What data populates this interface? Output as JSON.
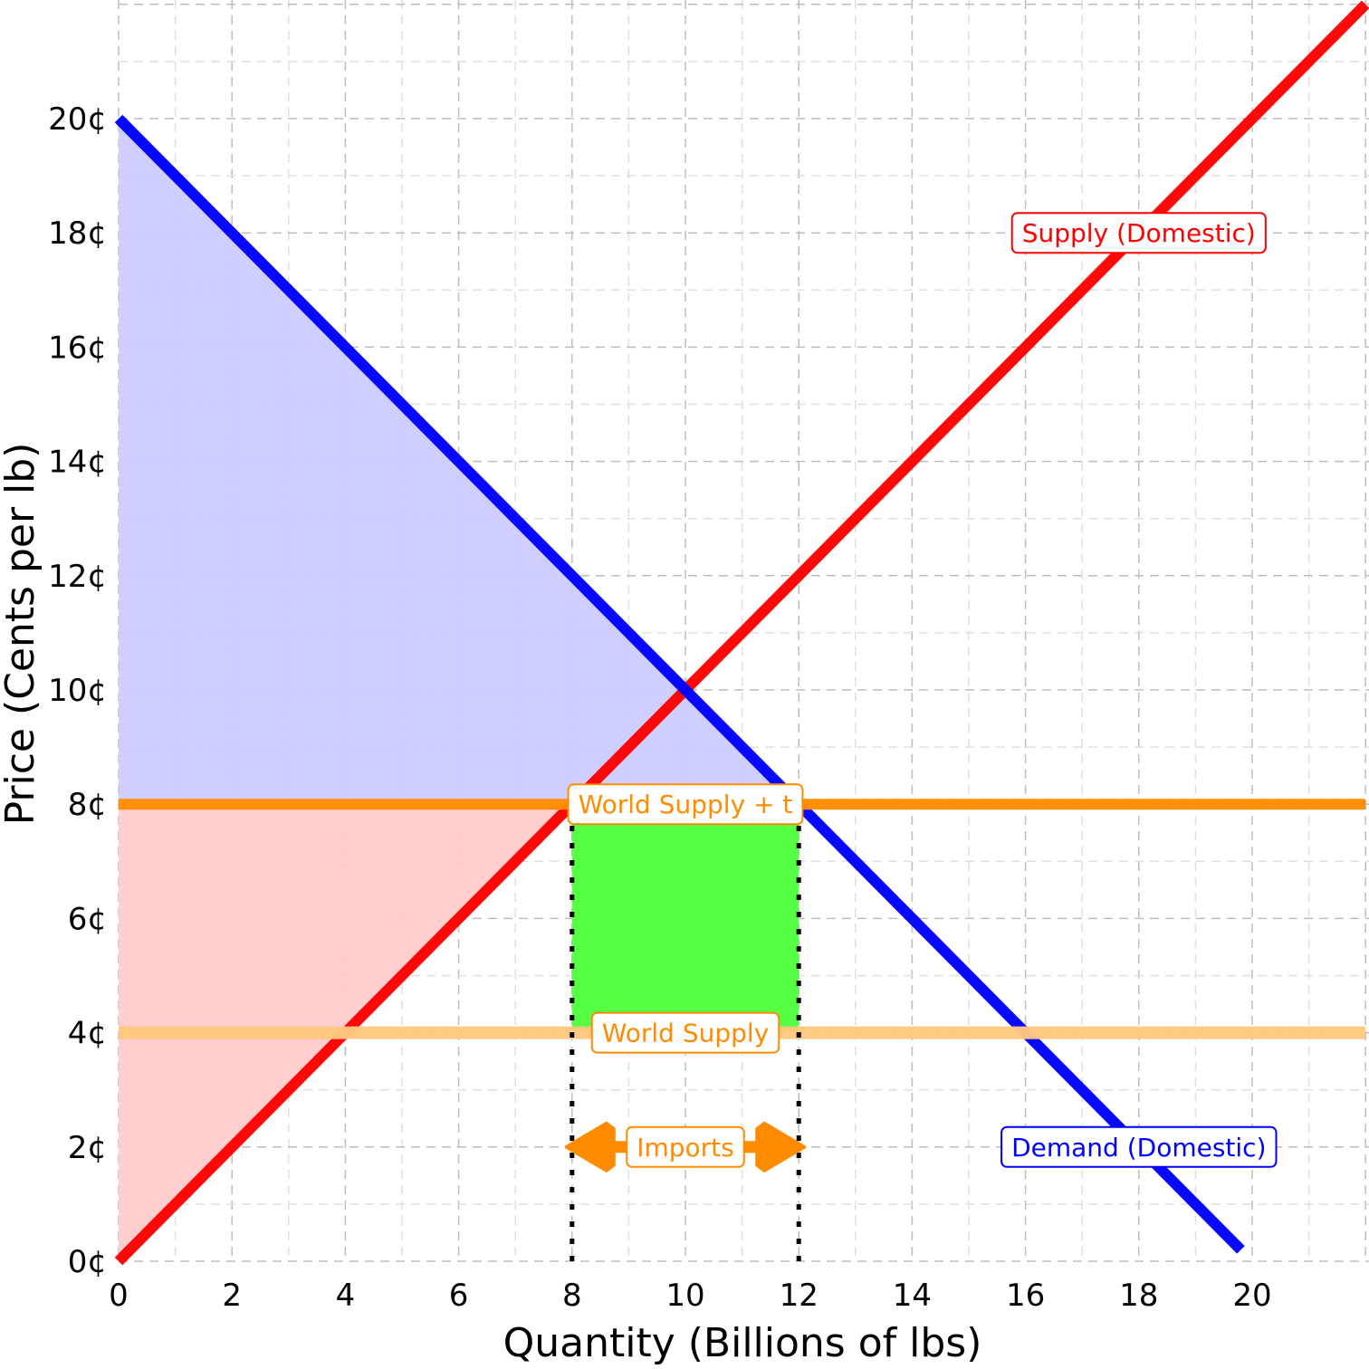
{
  "chart_data": {
    "type": "line",
    "xlabel": "Quantity (Billions of lbs)",
    "ylabel": "Price (Cents per lb)",
    "xlim": [
      0,
      22
    ],
    "ylim": [
      0,
      22
    ],
    "x_ticks": [
      0,
      2,
      4,
      6,
      8,
      10,
      12,
      14,
      16,
      18,
      20
    ],
    "y_ticks": [
      0,
      2,
      4,
      6,
      8,
      10,
      12,
      14,
      16,
      18,
      20
    ],
    "x_tick_labels": [
      "0",
      "2",
      "4",
      "6",
      "8",
      "10",
      "12",
      "14",
      "16",
      "18",
      "20"
    ],
    "y_tick_labels": [
      "0¢",
      "2¢",
      "4¢",
      "6¢",
      "8¢",
      "10¢",
      "12¢",
      "14¢",
      "16¢",
      "18¢",
      "20¢"
    ],
    "grid": true,
    "series": [
      {
        "name": "Supply (Domestic)",
        "color": "#ff0000",
        "x": [
          0,
          22
        ],
        "y": [
          0,
          22
        ]
      },
      {
        "name": "Demand (Domestic)",
        "color": "#0000ff",
        "x": [
          0,
          19.8
        ],
        "y": [
          20,
          0.2
        ]
      },
      {
        "name": "World Supply + t",
        "color": "#ff8c00",
        "x": [
          0,
          22
        ],
        "y": [
          8,
          8
        ]
      },
      {
        "name": "World Supply",
        "color": "#ffc880",
        "x": [
          0,
          22
        ],
        "y": [
          4,
          4
        ]
      }
    ],
    "areas": [
      {
        "kind": "consumer surplus",
        "color": "#ccccff",
        "points": [
          [
            0,
            20
          ],
          [
            0,
            8
          ],
          [
            12,
            8
          ]
        ]
      },
      {
        "kind": "producer surplus",
        "color": "#ffcccc",
        "points": [
          [
            0,
            0
          ],
          [
            0,
            8
          ],
          [
            8,
            8
          ]
        ]
      },
      {
        "kind": "tariff revenue",
        "color": "#55ff44",
        "points": [
          [
            8,
            4
          ],
          [
            12,
            4
          ],
          [
            12,
            8
          ],
          [
            8,
            8
          ]
        ]
      }
    ],
    "dotted_lines": [
      {
        "x": 8,
        "y_from": 0,
        "y_to": 8
      },
      {
        "x": 12,
        "y_from": 0,
        "y_to": 8
      }
    ],
    "annotations": [
      {
        "text": "Supply (Domestic)",
        "x": 18,
        "y": 18,
        "color": "#ff0000"
      },
      {
        "text": "Demand (Domestic)",
        "x": 18,
        "y": 2,
        "color": "#0000ff"
      },
      {
        "text": "World Supply + t",
        "x": 10,
        "y": 8,
        "color": "#ff8c00"
      },
      {
        "text": "World Supply",
        "x": 10,
        "y": 4,
        "color": "#ff8c00"
      },
      {
        "text": "Imports",
        "x": 10,
        "y": 2,
        "color": "#ff8c00",
        "arrow_from": 8,
        "arrow_to": 12
      }
    ]
  }
}
